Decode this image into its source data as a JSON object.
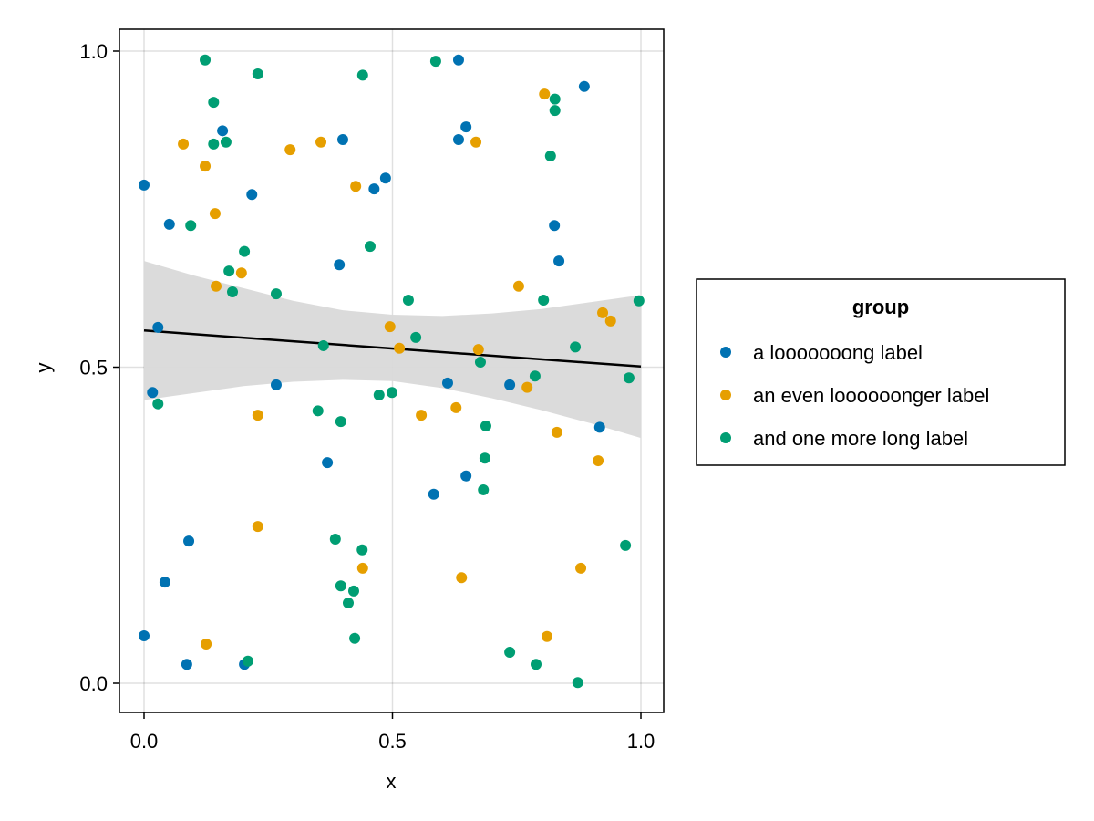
{
  "chart_data": {
    "type": "scatter",
    "xlabel": "x",
    "ylabel": "y",
    "xlim": [
      -0.05,
      1.05
    ],
    "ylim": [
      -0.047,
      1.035
    ],
    "xticks": [
      0.0,
      0.5,
      1.0
    ],
    "xtick_labels": [
      "0.0",
      "0.5",
      "1.0"
    ],
    "yticks": [
      0.0,
      0.5,
      1.0
    ],
    "ytick_labels": [
      "0.0",
      "0.5",
      "1.0"
    ],
    "grid": true,
    "legend": {
      "title": "group",
      "placement": "right"
    },
    "series": [
      {
        "name": "a looooooong label",
        "color": "#0072B2",
        "x": [
          0.0,
          0.158,
          0.051,
          0.217,
          0.4,
          0.393,
          0.463,
          0.486,
          0.028,
          0.017,
          0.266,
          0.369,
          0.09,
          0.042,
          0.0,
          0.086,
          0.202,
          0.633,
          0.633,
          0.648,
          0.886,
          0.826,
          0.835,
          0.611,
          0.736,
          0.917,
          0.648,
          0.583
        ],
        "y": [
          0.788,
          0.874,
          0.726,
          0.773,
          0.86,
          0.662,
          0.782,
          0.799,
          0.563,
          0.46,
          0.472,
          0.349,
          0.225,
          0.16,
          0.075,
          0.03,
          0.03,
          0.986,
          0.86,
          0.88,
          0.944,
          0.724,
          0.668,
          0.475,
          0.472,
          0.405,
          0.328,
          0.299
        ]
      },
      {
        "name": "an even loooooonger label",
        "color": "#E69F00",
        "x": [
          0.079,
          0.123,
          0.143,
          0.145,
          0.196,
          0.294,
          0.356,
          0.426,
          0.495,
          0.514,
          0.229,
          0.229,
          0.125,
          0.44,
          0.558,
          0.628,
          0.668,
          0.673,
          0.806,
          0.754,
          0.771,
          0.831,
          0.923,
          0.939,
          0.914,
          0.879,
          0.639,
          0.811
        ],
        "y": [
          0.853,
          0.818,
          0.743,
          0.628,
          0.649,
          0.844,
          0.856,
          0.786,
          0.564,
          0.53,
          0.424,
          0.248,
          0.062,
          0.182,
          0.424,
          0.436,
          0.856,
          0.528,
          0.932,
          0.628,
          0.468,
          0.397,
          0.586,
          0.573,
          0.352,
          0.182,
          0.167,
          0.074
        ]
      },
      {
        "name": "and one more long label",
        "color": "#009E73",
        "x": [
          0.123,
          0.229,
          0.14,
          0.14,
          0.165,
          0.094,
          0.202,
          0.171,
          0.178,
          0.266,
          0.028,
          0.361,
          0.35,
          0.396,
          0.44,
          0.455,
          0.532,
          0.547,
          0.473,
          0.499,
          0.385,
          0.439,
          0.396,
          0.422,
          0.411,
          0.424,
          0.209,
          0.587,
          0.827,
          0.827,
          0.818,
          0.804,
          0.868,
          0.677,
          0.787,
          0.688,
          0.686,
          0.683,
          0.976,
          0.996,
          0.969,
          0.736,
          0.789,
          0.873
        ],
        "y": [
          0.986,
          0.964,
          0.919,
          0.853,
          0.856,
          0.724,
          0.683,
          0.652,
          0.619,
          0.616,
          0.442,
          0.534,
          0.431,
          0.414,
          0.962,
          0.691,
          0.606,
          0.547,
          0.456,
          0.46,
          0.228,
          0.211,
          0.154,
          0.146,
          0.127,
          0.071,
          0.035,
          0.984,
          0.924,
          0.906,
          0.834,
          0.606,
          0.532,
          0.508,
          0.486,
          0.407,
          0.356,
          0.306,
          0.483,
          0.605,
          0.218,
          0.049,
          0.03,
          0.001
        ]
      }
    ],
    "fit": {
      "x": [
        0.0,
        1.0
      ],
      "y": [
        0.558,
        0.501
      ],
      "color": "#000000",
      "band_x": [
        0,
        0.1,
        0.2,
        0.3,
        0.4,
        0.5,
        0.6,
        0.7,
        0.8,
        0.9,
        1.0
      ],
      "band_lower": [
        0.448,
        0.459,
        0.47,
        0.477,
        0.48,
        0.478,
        0.467,
        0.451,
        0.432,
        0.411,
        0.388
      ],
      "band_upper": [
        0.668,
        0.645,
        0.625,
        0.605,
        0.59,
        0.583,
        0.581,
        0.585,
        0.592,
        0.603,
        0.614
      ],
      "band_color": "#D9D9D9"
    }
  }
}
